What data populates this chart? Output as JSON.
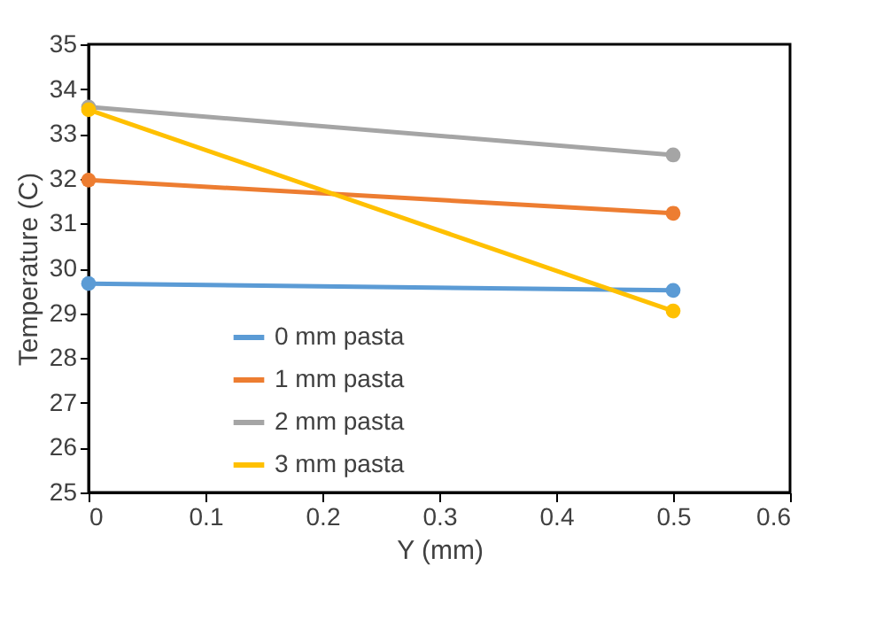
{
  "chart_data": {
    "type": "line",
    "xlabel": "Y (mm)",
    "ylabel": "Temperature  (C)",
    "xlim": [
      0,
      0.6
    ],
    "xticks": [
      0,
      0.1,
      0.2,
      0.3,
      0.4,
      0.5,
      0.6
    ],
    "ylim": [
      25,
      35
    ],
    "yticks": [
      25,
      26,
      27,
      28,
      29,
      30,
      31,
      32,
      33,
      34,
      35
    ],
    "grid": false,
    "legend": "bottom left",
    "marker": "circle",
    "line_style": "solid",
    "x": [
      0,
      0.5
    ],
    "series": [
      {
        "name": "0 mm pasta",
        "color": "#5b9bd5",
        "values": [
          29.66,
          29.51
        ]
      },
      {
        "name": "1 mm pasta",
        "color": "#ed7d31",
        "values": [
          31.97,
          31.23
        ]
      },
      {
        "name": "2 mm pasta",
        "color": "#a5a5a5",
        "values": [
          33.6,
          32.53
        ]
      },
      {
        "name": "3 mm pasta",
        "color": "#ffc000",
        "values": [
          33.54,
          29.05
        ]
      }
    ]
  }
}
